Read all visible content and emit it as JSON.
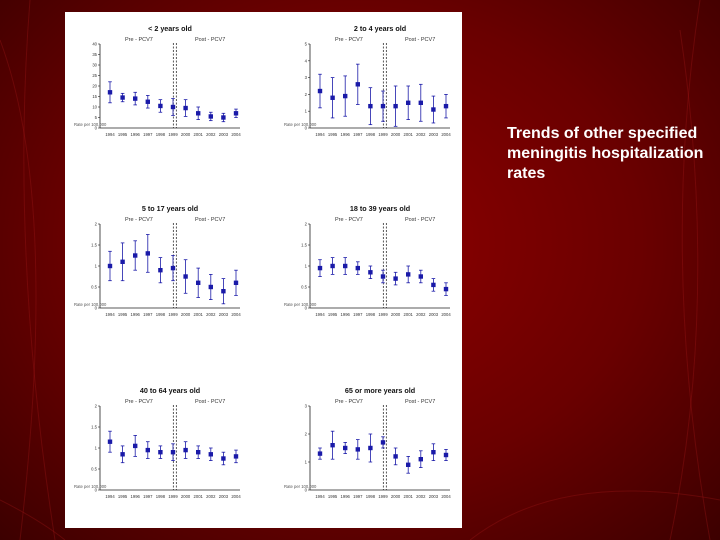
{
  "slide": {
    "caption": "Trends of other specified meningitis hospitalization rates"
  },
  "colors": {
    "marker": "#1a1aa8",
    "axis": "#222222",
    "divider": "#111111"
  },
  "chart_data": [
    {
      "type": "scatter",
      "title": "< 2 years old",
      "left_label": "Pre - PCV7",
      "right_label": "Post - PCV7",
      "ylabel": "Rate per 100,000",
      "ylim": [
        0,
        40
      ],
      "yticks": [
        0,
        5,
        10,
        15,
        20,
        25,
        30,
        35,
        40
      ],
      "categories": [
        "1994",
        "1995",
        "1996",
        "1997",
        "1998",
        "1999",
        "2000",
        "2001",
        "2002",
        "2003",
        "2004"
      ],
      "values": [
        17,
        14.5,
        14,
        12.5,
        10.5,
        10,
        9.5,
        7,
        5.5,
        5,
        7
      ],
      "err": [
        5,
        2,
        3,
        3,
        3,
        4,
        4,
        3,
        2,
        2,
        2
      ],
      "divider_after": 5
    },
    {
      "type": "scatter",
      "title": "2 to 4 years old",
      "left_label": "Pre - PCV7",
      "right_label": "Post - PCV7",
      "ylabel": "Rate per 100,000",
      "ylim": [
        0,
        5
      ],
      "yticks": [
        0,
        1,
        2,
        3,
        4,
        5
      ],
      "categories": [
        "1994",
        "1995",
        "1996",
        "1997",
        "1998",
        "1999",
        "2000",
        "2001",
        "2002",
        "2003",
        "2004"
      ],
      "values": [
        2.2,
        1.8,
        1.9,
        2.6,
        1.3,
        1.3,
        1.3,
        1.5,
        1.5,
        1.1,
        1.3
      ],
      "err": [
        1,
        1.2,
        1.2,
        1.2,
        1.1,
        0.9,
        1.2,
        1,
        1.1,
        0.8,
        0.7
      ],
      "divider_after": 5
    },
    {
      "type": "scatter",
      "title": "5 to 17 years old",
      "left_label": "Pre - PCV7",
      "right_label": "Post - PCV7",
      "ylabel": "Rate per 100,000",
      "ylim": [
        0,
        2
      ],
      "yticks": [
        0,
        0.5,
        1,
        1.5,
        2
      ],
      "categories": [
        "1994",
        "1995",
        "1996",
        "1997",
        "1998",
        "1999",
        "2000",
        "2001",
        "2002",
        "2003",
        "2004"
      ],
      "values": [
        1.0,
        1.1,
        1.25,
        1.3,
        0.9,
        0.95,
        0.75,
        0.6,
        0.5,
        0.4,
        0.6
      ],
      "err": [
        0.35,
        0.45,
        0.35,
        0.45,
        0.3,
        0.3,
        0.4,
        0.35,
        0.3,
        0.3,
        0.3
      ],
      "divider_after": 5
    },
    {
      "type": "scatter",
      "title": "18 to 39 years old",
      "left_label": "Pre - PCV7",
      "right_label": "Post - PCV7",
      "ylabel": "Rate per 100,000",
      "ylim": [
        0,
        2
      ],
      "yticks": [
        0,
        0.5,
        1,
        1.5,
        2
      ],
      "categories": [
        "1994",
        "1995",
        "1996",
        "1997",
        "1998",
        "1999",
        "2000",
        "2001",
        "2002",
        "2003",
        "2004"
      ],
      "values": [
        0.95,
        1.0,
        1.0,
        0.95,
        0.85,
        0.75,
        0.7,
        0.8,
        0.75,
        0.55,
        0.45
      ],
      "err": [
        0.2,
        0.2,
        0.2,
        0.15,
        0.15,
        0.15,
        0.15,
        0.2,
        0.15,
        0.15,
        0.15
      ],
      "divider_after": 5
    },
    {
      "type": "scatter",
      "title": "40 to 64 years old",
      "left_label": "Pre - PCV7",
      "right_label": "Post - PCV7",
      "ylabel": "Rate per 100,000",
      "ylim": [
        0,
        2
      ],
      "yticks": [
        0,
        0.5,
        1,
        1.5,
        2
      ],
      "categories": [
        "1994",
        "1995",
        "1996",
        "1997",
        "1998",
        "1999",
        "2000",
        "2001",
        "2002",
        "2003",
        "2004"
      ],
      "values": [
        1.15,
        0.85,
        1.05,
        0.95,
        0.9,
        0.9,
        0.95,
        0.9,
        0.85,
        0.75,
        0.8
      ],
      "err": [
        0.25,
        0.2,
        0.25,
        0.2,
        0.15,
        0.2,
        0.2,
        0.15,
        0.15,
        0.15,
        0.15
      ],
      "divider_after": 5
    },
    {
      "type": "scatter",
      "title": "65 or more years old",
      "left_label": "Pre - PCV7",
      "right_label": "Post - PCV7",
      "ylabel": "Rate per 100,000",
      "ylim": [
        0,
        3
      ],
      "yticks": [
        0,
        1,
        2,
        3
      ],
      "categories": [
        "1994",
        "1995",
        "1996",
        "1997",
        "1998",
        "1999",
        "2000",
        "2001",
        "2002",
        "2003",
        "2004"
      ],
      "values": [
        1.3,
        1.6,
        1.5,
        1.45,
        1.5,
        1.7,
        1.2,
        0.9,
        1.1,
        1.35,
        1.25
      ],
      "err": [
        0.2,
        0.5,
        0.2,
        0.35,
        0.5,
        0.2,
        0.3,
        0.3,
        0.3,
        0.3,
        0.2
      ],
      "divider_after": 5
    }
  ]
}
